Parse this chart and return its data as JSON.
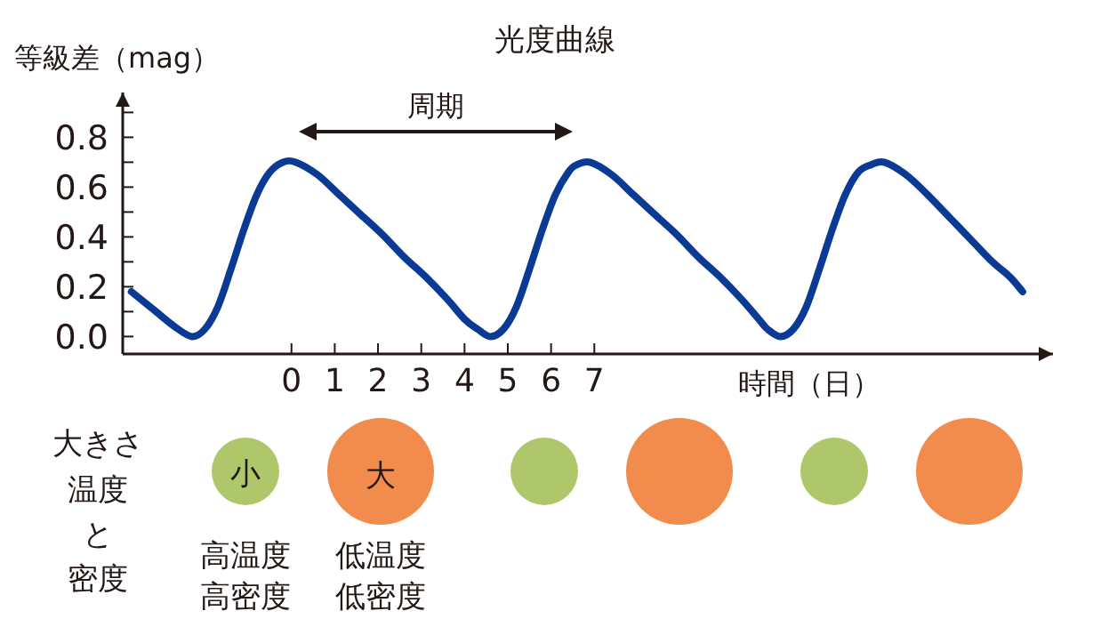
{
  "chart_data": {
    "type": "line",
    "title": "光度曲線",
    "xlabel": "時間（日）",
    "ylabel": "等級差（mag）",
    "x": [
      -3.7,
      -3.2,
      -2.7,
      -2.3,
      -2.0,
      -1.7,
      -1.4,
      -1.1,
      -0.8,
      -0.5,
      -0.2,
      0.1,
      0.6,
      1.1,
      1.6,
      2.1,
      2.6,
      3.1,
      3.6,
      4.0,
      4.3,
      4.6,
      4.9,
      5.2,
      5.5,
      5.8,
      6.1,
      6.4,
      6.6,
      6.9,
      7.4,
      7.9,
      8.4,
      8.9,
      9.4,
      9.9,
      10.4,
      10.8,
      11.0,
      11.3,
      11.6,
      11.9,
      12.2,
      12.5,
      12.8,
      13.1,
      13.4,
      13.7,
      14.2,
      14.7,
      15.2,
      15.7,
      16.2,
      16.6,
      16.9
    ],
    "series": [
      {
        "color": "#0a3a94",
        "values": [
          0.18,
          0.11,
          0.04,
          0.0,
          0.03,
          0.12,
          0.27,
          0.43,
          0.57,
          0.66,
          0.7,
          0.7,
          0.65,
          0.57,
          0.49,
          0.41,
          0.32,
          0.24,
          0.15,
          0.07,
          0.03,
          0.0,
          0.03,
          0.12,
          0.27,
          0.43,
          0.57,
          0.66,
          0.69,
          0.7,
          0.65,
          0.57,
          0.49,
          0.41,
          0.32,
          0.24,
          0.15,
          0.07,
          0.03,
          0.0,
          0.03,
          0.12,
          0.27,
          0.43,
          0.57,
          0.66,
          0.69,
          0.7,
          0.65,
          0.57,
          0.48,
          0.39,
          0.3,
          0.24,
          0.18
        ]
      }
    ],
    "xlim": [
      -3.9,
      17.6
    ],
    "ylim": [
      -0.07,
      0.98
    ],
    "xticks": [
      0,
      1,
      2,
      3,
      4,
      5,
      6,
      7
    ],
    "yticks": [
      {
        "value": 0,
        "label": "0.0"
      },
      {
        "value": 0.1,
        "label": null
      },
      {
        "value": 0.2,
        "label": "0.2"
      },
      {
        "value": 0.3,
        "label": null
      },
      {
        "value": 0.4,
        "label": "0.4"
      },
      {
        "value": 0.5,
        "label": null
      },
      {
        "value": 0.6,
        "label": "0.6"
      },
      {
        "value": 0.7,
        "label": null
      },
      {
        "value": 0.8,
        "label": "0.8"
      },
      {
        "value": 0.9,
        "label": null
      }
    ],
    "grid": false,
    "marker": "none",
    "line_style": "solid",
    "annotations": [
      "大きさ",
      "温度",
      "と",
      "密度",
      "小",
      "大",
      "高温度",
      "高密度",
      "低温度",
      "低密度",
      "周期"
    ]
  }
}
